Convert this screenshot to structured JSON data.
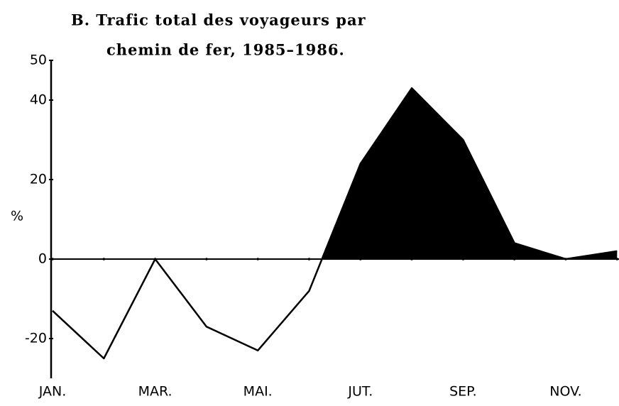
{
  "chart_data": {
    "type": "line",
    "title": [
      "B. Trafic total des voyageurs par",
      "chemin de fer, 1985–1986."
    ],
    "ylabel": "%",
    "categories": [
      "JAN.",
      null,
      "MAR.",
      null,
      "MAI.",
      null,
      "JUT.",
      null,
      "SEP.",
      null,
      "NOV.",
      null
    ],
    "series": [
      {
        "color": "#000000",
        "values": [
          -13,
          -25,
          0,
          -17,
          -23,
          -8,
          24,
          43,
          30,
          4,
          0,
          2
        ]
      }
    ],
    "positive_fill": "#000000",
    "ylim": [
      -30,
      50
    ],
    "yticks": [
      50,
      40,
      20,
      0,
      -20
    ]
  }
}
